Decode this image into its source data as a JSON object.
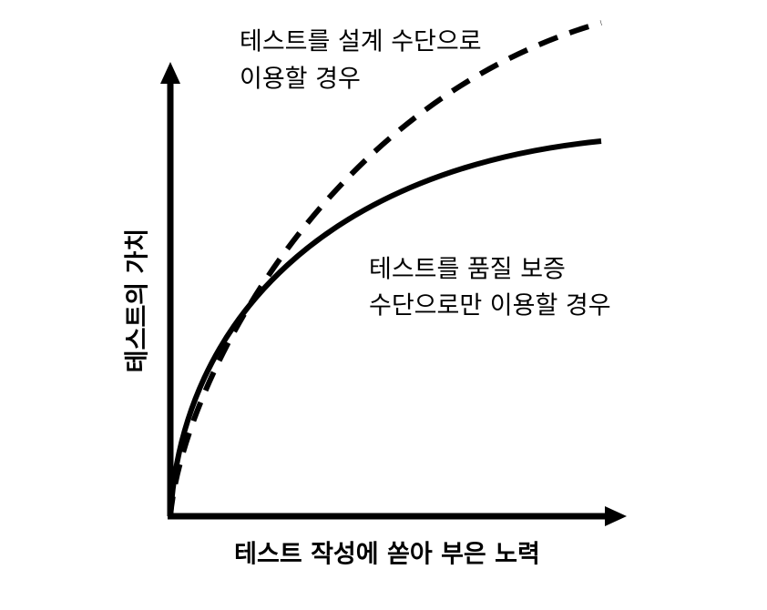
{
  "labels": {
    "design_tool": {
      "line1": "테스트를 설계 수단으로",
      "line2": "이용할 경우"
    },
    "quality_tool": {
      "line1": "테스트를 품질 보증",
      "line2": "수단으로만 이용할 경우"
    }
  },
  "axes": {
    "y_title": "테스트의 가치",
    "x_title": "테스트 작성에 쏟아 부은 노력"
  }
}
